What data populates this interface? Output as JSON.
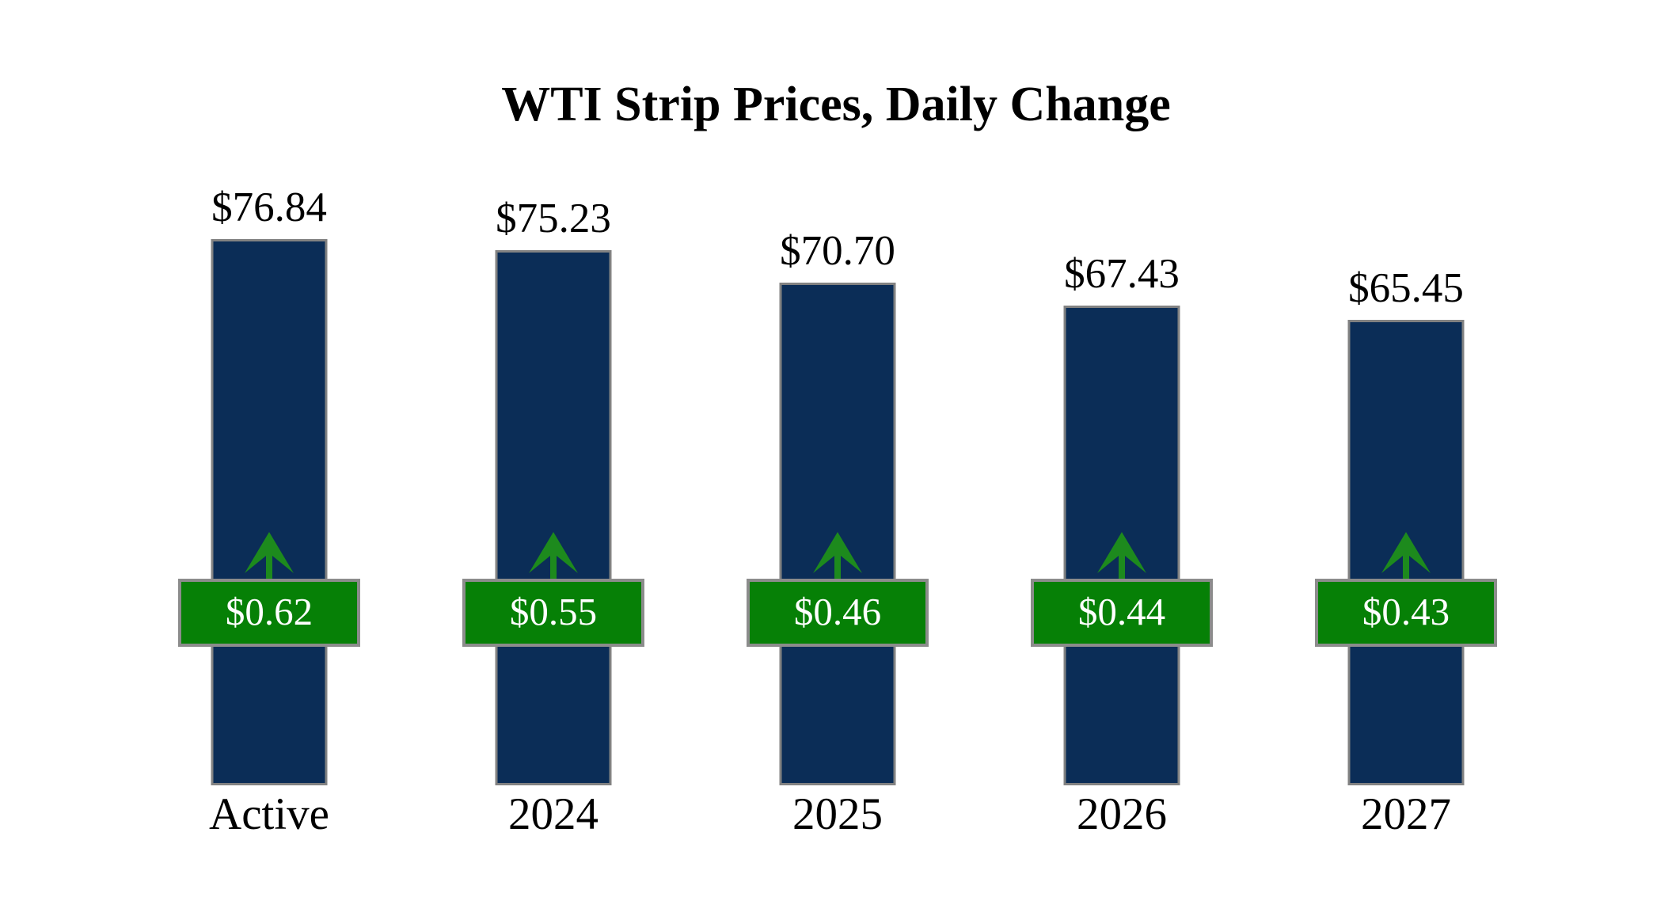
{
  "title": "WTI Strip Prices, Daily Change",
  "colors": {
    "background": "#ffffff",
    "bar_fill": "#0b2d57",
    "bar_border": "#828282",
    "badge_fill": "#068006",
    "badge_border": "#8c8c8c",
    "badge_text": "#ffffff",
    "arrow_green": "#1d8a1d",
    "label_text": "#000000"
  },
  "chart_data": {
    "type": "bar",
    "title": "WTI Strip Prices, Daily Change",
    "categories": [
      "Active",
      "2024",
      "2025",
      "2026",
      "2027"
    ],
    "series": [
      {
        "name": "WTI strip price",
        "values": [
          76.84,
          75.23,
          70.7,
          67.43,
          65.45
        ],
        "labels": [
          "$76.84",
          "$75.23",
          "$70.70",
          "$67.43",
          "$65.45"
        ]
      },
      {
        "name": "Daily change",
        "values": [
          0.62,
          0.55,
          0.46,
          0.44,
          0.43
        ],
        "labels": [
          "$0.62",
          "$0.55",
          "$0.46",
          "$0.44",
          "$0.43"
        ],
        "direction": "up"
      }
    ],
    "xlabel": "",
    "ylabel": "",
    "ylim": [
      0,
      76.84
    ],
    "grid": false,
    "legend": false,
    "bar_color": "#0b2d57",
    "change_badge_color": "#068006"
  }
}
